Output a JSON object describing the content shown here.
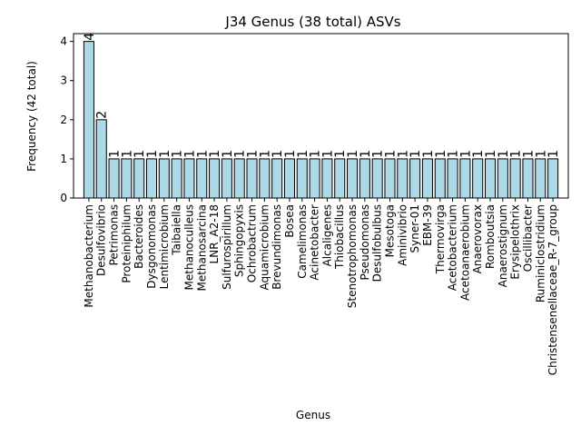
{
  "chart_data": {
    "type": "bar",
    "title": "J34 Genus (38 total) ASVs",
    "xlabel": "Genus",
    "ylabel": "Frequency (42 total)",
    "ylim": [
      0,
      4.2
    ],
    "yticks": [
      0,
      1,
      2,
      3,
      4
    ],
    "bar_color": "#add8e6",
    "edge_color": "#000000",
    "grid": false,
    "categories": [
      "Methanobacterium",
      "Desulfovibrio",
      "Petrimonas",
      "Proteiniphilum",
      "Bacteroides",
      "Dysgonomonas",
      "Lentimicrobium",
      "Taibaiella",
      "Methanoculleus",
      "Methanosarcina",
      "LNR_A2-18",
      "Sulfurospirillum",
      "Sphingopyxis",
      "Ochrobactrum",
      "Aquamicrobium",
      "Brevundimonas",
      "Bosea",
      "Camelimonas",
      "Acinetobacter",
      "Alcaligenes",
      "Thiobacillus",
      "Stenotrophomonas",
      "Pseudomonas",
      "Desulfobulbus",
      "Mesotoga",
      "Aminivibrio",
      "Syner-01",
      "EBM-39",
      "Thermovirga",
      "Acetobacterium",
      "Acetoanaerobium",
      "Anaerovorax",
      "Romboutsia",
      "Anaerostignum",
      "Erysipelothrix",
      "Oscillibacter",
      "Ruminiclostridium",
      "Christensenellaceae_R-7_group"
    ],
    "values": [
      4,
      2,
      1,
      1,
      1,
      1,
      1,
      1,
      1,
      1,
      1,
      1,
      1,
      1,
      1,
      1,
      1,
      1,
      1,
      1,
      1,
      1,
      1,
      1,
      1,
      1,
      1,
      1,
      1,
      1,
      1,
      1,
      1,
      1,
      1,
      1,
      1,
      1
    ],
    "data_labels": [
      "4",
      "2",
      "1",
      "1",
      "1",
      "1",
      "1",
      "1",
      "1",
      "1",
      "1",
      "1",
      "1",
      "1",
      "1",
      "1",
      "1",
      "1",
      "1",
      "1",
      "1",
      "1",
      "1",
      "1",
      "1",
      "1",
      "1",
      "1",
      "1",
      "1",
      "1",
      "1",
      "1",
      "1",
      "1",
      "1",
      "1",
      "1"
    ]
  }
}
